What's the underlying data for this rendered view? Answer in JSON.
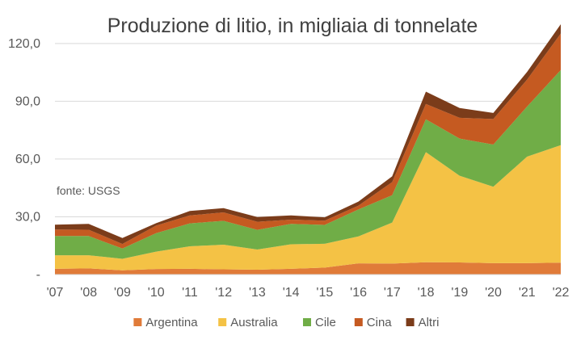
{
  "chart_data": {
    "type": "area",
    "stacked": true,
    "title": "Produzione di litio, in migliaia di tonnelate",
    "annotation": "fonte: USGS",
    "xlabel": "",
    "ylabel": "",
    "categories": [
      "'07",
      "'08",
      "'09",
      "'10",
      "'11",
      "'12",
      "'13",
      "'14",
      "'15",
      "'16",
      "'17",
      "'18",
      "'19",
      "'20",
      "'21",
      "'22"
    ],
    "ylim": [
      0,
      130
    ],
    "yticks": [
      0,
      30,
      60,
      90,
      120
    ],
    "ytick_labels": [
      "-",
      "30,0",
      "60,0",
      "90,0",
      "120,0"
    ],
    "grid": true,
    "legend_position": "bottom",
    "series": [
      {
        "name": "Argentina",
        "color": "#E07B39",
        "values": [
          3.0,
          3.2,
          2.2,
          2.9,
          3.0,
          2.7,
          2.5,
          3.0,
          3.6,
          5.8,
          5.7,
          6.4,
          6.3,
          5.9,
          5.9,
          6.2
        ]
      },
      {
        "name": "Australia",
        "color": "#F4C245",
        "values": [
          7.0,
          6.8,
          6.0,
          9.0,
          11.7,
          12.8,
          10.5,
          12.7,
          12.4,
          14.0,
          21.3,
          57.2,
          45.0,
          39.7,
          55.3,
          61.0
        ]
      },
      {
        "name": "Cile",
        "color": "#70AD47",
        "values": [
          10.0,
          10.0,
          5.3,
          9.6,
          11.9,
          12.4,
          10.2,
          10.6,
          9.8,
          14.0,
          14.2,
          17.0,
          19.3,
          21.9,
          26.0,
          39.0
        ]
      },
      {
        "name": "Cina",
        "color": "#C55A21",
        "values": [
          3.4,
          3.3,
          2.4,
          3.9,
          4.1,
          4.4,
          4.2,
          2.2,
          2.2,
          2.0,
          6.8,
          8.0,
          10.8,
          13.3,
          14.0,
          19.0
        ]
      },
      {
        "name": "Altri",
        "color": "#7B3C1A",
        "values": [
          2.5,
          3.0,
          3.1,
          1.3,
          2.3,
          2.2,
          2.5,
          2.2,
          1.7,
          2.1,
          3.0,
          6.4,
          5.1,
          3.1,
          4.0,
          4.8
        ]
      }
    ]
  }
}
